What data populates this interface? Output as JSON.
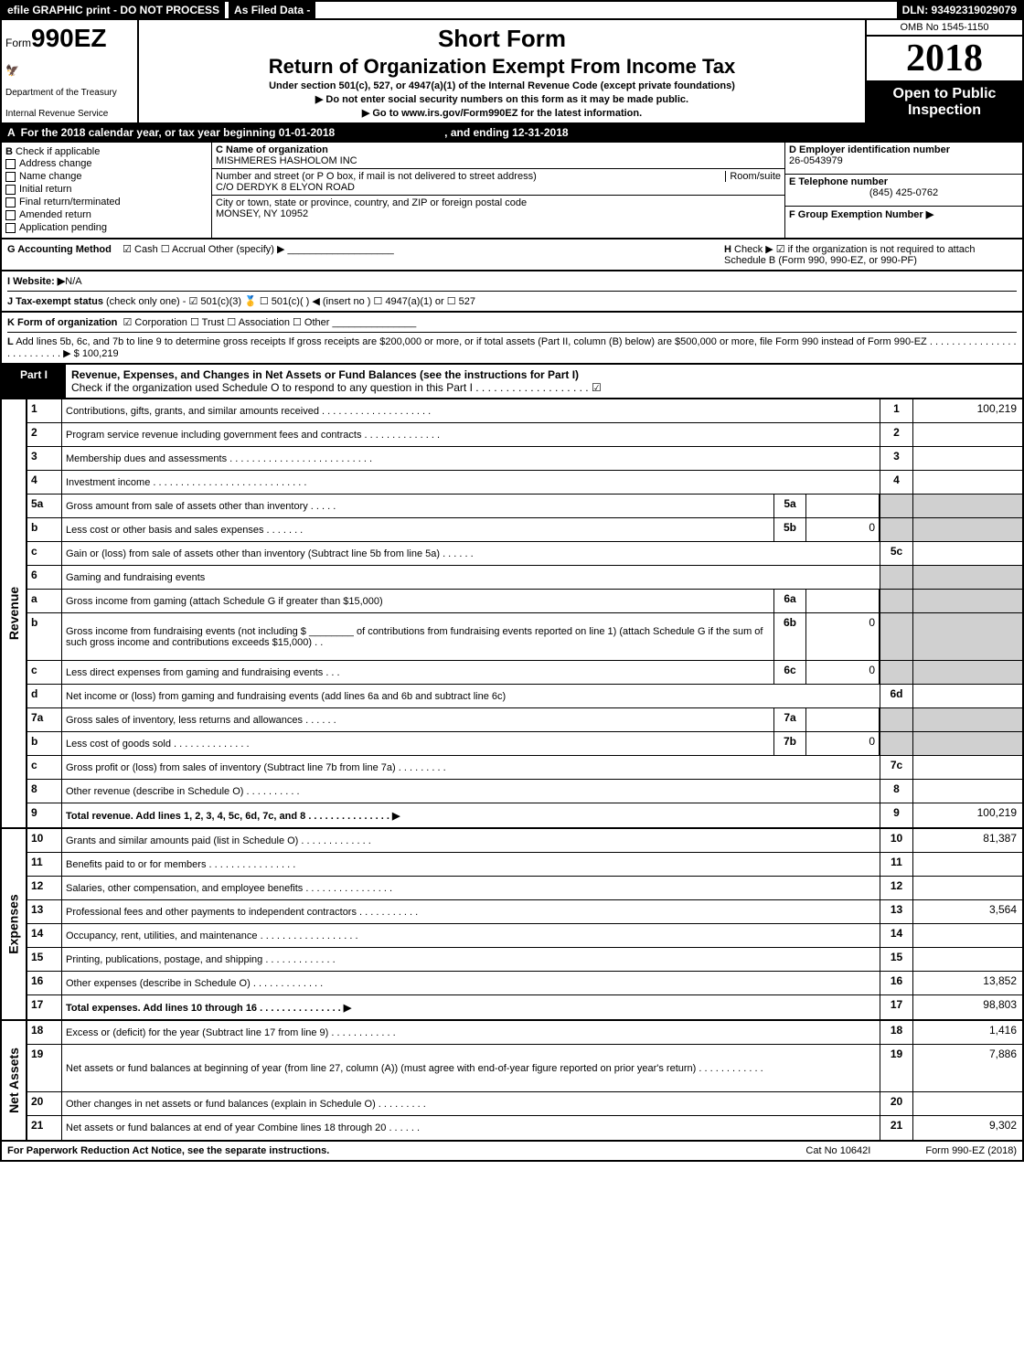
{
  "top": {
    "efile": "efile GRAPHIC print - DO NOT PROCESS",
    "asFiled": "As Filed Data -",
    "dln": "DLN: 93492319029079"
  },
  "header": {
    "formPrefix": "Form",
    "formNumber": "990EZ",
    "dept1": "Department of the Treasury",
    "dept2": "Internal Revenue Service",
    "shortForm": "Short Form",
    "returnTitle": "Return of Organization Exempt From Income Tax",
    "underSection": "Under section 501(c), 527, or 4947(a)(1) of the Internal Revenue Code (except private foundations)",
    "ssnWarn": "▶ Do not enter social security numbers on this form as it may be made public.",
    "goto": "▶ Go to www.irs.gov/Form990EZ for the latest information.",
    "omb": "OMB No 1545-1150",
    "year": "2018",
    "open": "Open to Public Inspection"
  },
  "rowA": {
    "label": "A",
    "text": "For the 2018 calendar year, or tax year beginning 01-01-2018",
    "ending": ", and ending 12-31-2018"
  },
  "colB": {
    "label": "B",
    "check": "Check if applicable",
    "items": [
      "Address change",
      "Name change",
      "Initial return",
      "Final return/terminated",
      "Amended return",
      "Application pending"
    ]
  },
  "colC": {
    "cLabel": "C Name of organization",
    "orgName": "MISHMERES HASHOLOM INC",
    "addrLabel": "Number and street (or P O  box, if mail is not delivered to street address)",
    "roomLabel": "Room/suite",
    "addr": "C/O DERDYK 8 ELYON ROAD",
    "cityLabel": "City or town, state or province, country, and ZIP or foreign postal code",
    "city": "MONSEY, NY  10952"
  },
  "colDEF": {
    "dLabel": "D Employer identification number",
    "ein": "26-0543979",
    "eLabel": "E Telephone number",
    "phone": "(845) 425-0762",
    "fLabel": "F Group Exemption Number   ▶"
  },
  "gh": {
    "gLabel": "G Accounting Method",
    "gOpts": "☑ Cash   ☐ Accrual   Other (specify) ▶",
    "hLabel": "H",
    "hText": "Check ▶  ☑ if the organization is not required to attach Schedule B (Form 990, 990-EZ, or 990-PF)"
  },
  "ij": {
    "iLabel": "I Website: ▶",
    "iVal": "N/A",
    "jLabel": "J Tax-exempt status",
    "jText": "(check only one) - ☑ 501(c)(3) 🥇 ☐ 501(c)( ) ◀ (insert no ) ☐ 4947(a)(1) or ☐ 527"
  },
  "kl": {
    "kLabel": "K Form of organization",
    "kText": "☑ Corporation  ☐ Trust  ☐ Association  ☐ Other",
    "lLabel": "L",
    "lText": "Add lines 5b, 6c, and 7b to line 9 to determine gross receipts  If gross receipts are $200,000 or more, or if total assets (Part II, column (B) below) are $500,000 or more, file Form 990 instead of Form 990-EZ  .  .  .  .  .  .  .  .  .  .  .  .  .  .  .  .  .  .  .  .  .  .  .  .  .  .  ▶ $ 100,219"
  },
  "part1": {
    "label": "Part I",
    "title": "Revenue, Expenses, and Changes in Net Assets or Fund Balances (see the instructions for Part I)",
    "sub": "Check if the organization used Schedule O to respond to any question in this Part I .  .  .  .  .  .  .  .  .  .  .  .  .  .  .  .  .  .  . ☑"
  },
  "sections": {
    "revenue": "Revenue",
    "expenses": "Expenses",
    "netassets": "Net Assets"
  },
  "lines": [
    {
      "n": "1",
      "d": "Contributions, gifts, grants, and similar amounts received  .  .  .  .  .  .  .  .  .  .  .  .  .  .  .  .  .  .  .  .",
      "rn": "1",
      "rv": "100,219",
      "sec": "rev"
    },
    {
      "n": "2",
      "d": "Program service revenue including government fees and contracts  .  .  .  .  .  .  .  .  .  .  .  .  .  .",
      "rn": "2",
      "rv": "",
      "sec": "rev"
    },
    {
      "n": "3",
      "d": "Membership dues and assessments  .  .  .  .  .  .  .  .  .  .  .  .  .  .  .  .  .  .  .  .  .  .  .  .  .  .",
      "rn": "3",
      "rv": "",
      "sec": "rev"
    },
    {
      "n": "4",
      "d": "Investment income  .  .  .  .  .  .  .  .  .  .  .  .  .  .  .  .  .  .  .  .  .  .  .  .  .  .  .  .",
      "rn": "4",
      "rv": "",
      "sec": "rev"
    },
    {
      "n": "5a",
      "d": "Gross amount from sale of assets other than inventory  .  .  .  .  .",
      "box": "5a",
      "bv": "",
      "rn": "",
      "rv": "",
      "rshade": true,
      "sec": "rev"
    },
    {
      "n": "b",
      "d": "Less  cost or other basis and sales expenses  .  .  .  .  .  .  .",
      "box": "5b",
      "bv": "0",
      "rn": "",
      "rv": "",
      "rshade": true,
      "sec": "rev"
    },
    {
      "n": "c",
      "d": "Gain or (loss) from sale of assets other than inventory (Subtract line 5b from line 5a) .  .  .  .  .  .",
      "rn": "5c",
      "rv": "",
      "sec": "rev"
    },
    {
      "n": "6",
      "d": "Gaming and fundraising events",
      "rn": "",
      "rv": "",
      "rshade": true,
      "sec": "rev"
    },
    {
      "n": "a",
      "d": "Gross income from gaming (attach Schedule G if greater than $15,000)",
      "box": "6a",
      "bv": "",
      "rn": "",
      "rv": "",
      "rshade": true,
      "sec": "rev"
    },
    {
      "n": "b",
      "d": "Gross income from fundraising events (not including $ ________ of contributions from fundraising events reported on line 1) (attach Schedule G if the sum of such gross income and contributions exceeds $15,000)    .  .",
      "box": "6b",
      "bv": "0",
      "rn": "",
      "rv": "",
      "rshade": true,
      "sec": "rev",
      "tall": true
    },
    {
      "n": "c",
      "d": "Less  direct expenses from gaming and fundraising events     .  .  .",
      "box": "6c",
      "bv": "0",
      "rn": "",
      "rv": "",
      "rshade": true,
      "sec": "rev"
    },
    {
      "n": "d",
      "d": "Net income or (loss) from gaming and fundraising events (add lines 6a and 6b and subtract line 6c)",
      "rn": "6d",
      "rv": "",
      "sec": "rev"
    },
    {
      "n": "7a",
      "d": "Gross sales of inventory, less returns and allowances  .  .  .  .  .  .",
      "box": "7a",
      "bv": "",
      "rn": "",
      "rv": "",
      "rshade": true,
      "sec": "rev"
    },
    {
      "n": "b",
      "d": "Less  cost of goods sold          .  .  .  .  .  .  .  .  .  .  .  .  .  .",
      "box": "7b",
      "bv": "0",
      "rn": "",
      "rv": "",
      "rshade": true,
      "sec": "rev"
    },
    {
      "n": "c",
      "d": "Gross profit or (loss) from sales of inventory (Subtract line 7b from line 7a) .  .  .  .  .  .  .  .  .",
      "rn": "7c",
      "rv": "",
      "sec": "rev"
    },
    {
      "n": "8",
      "d": "Other revenue (describe in Schedule O)                  .  .  .  .  .  .  .  .  .  .",
      "rn": "8",
      "rv": "",
      "sec": "rev"
    },
    {
      "n": "9",
      "d": "Total revenue. Add lines 1, 2, 3, 4, 5c, 6d, 7c, and 8  .  .  .  .  .  .  .  .  .  .  .  .  .  .  .   ▶",
      "rn": "9",
      "rv": "100,219",
      "bold": true,
      "sec": "rev"
    },
    {
      "n": "10",
      "d": "Grants and similar amounts paid (list in Schedule O)          .  .  .  .  .  .  .  .  .  .  .  .  .",
      "rn": "10",
      "rv": "81,387",
      "sec": "exp"
    },
    {
      "n": "11",
      "d": "Benefits paid to or for members               .  .  .  .  .  .  .  .  .  .  .  .  .  .  .  .",
      "rn": "11",
      "rv": "",
      "sec": "exp"
    },
    {
      "n": "12",
      "d": "Salaries, other compensation, and employee benefits  .  .  .  .  .  .  .  .  .  .  .  .  .  .  .  .",
      "rn": "12",
      "rv": "",
      "sec": "exp"
    },
    {
      "n": "13",
      "d": "Professional fees and other payments to independent contractors  .  .  .  .  .  .  .  .  .  .  .",
      "rn": "13",
      "rv": "3,564",
      "sec": "exp"
    },
    {
      "n": "14",
      "d": "Occupancy, rent, utilities, and maintenance  .  .  .  .  .  .  .  .  .  .  .  .  .  .  .  .  .  .",
      "rn": "14",
      "rv": "",
      "sec": "exp"
    },
    {
      "n": "15",
      "d": "Printing, publications, postage, and shipping             .  .  .  .  .  .  .  .  .  .  .  .  .",
      "rn": "15",
      "rv": "",
      "sec": "exp"
    },
    {
      "n": "16",
      "d": "Other expenses (describe in Schedule O)               .  .  .  .  .  .  .  .  .  .  .  .  .",
      "rn": "16",
      "rv": "13,852",
      "sec": "exp"
    },
    {
      "n": "17",
      "d": "Total expenses. Add lines 10 through 16        .  .  .  .  .  .  .  .  .  .  .  .  .  .  .   ▶",
      "rn": "17",
      "rv": "98,803",
      "bold": true,
      "sec": "exp"
    },
    {
      "n": "18",
      "d": "Excess or (deficit) for the year (Subtract line 17 from line 9)     .  .  .  .  .  .  .  .  .  .  .  .",
      "rn": "18",
      "rv": "1,416",
      "sec": "net"
    },
    {
      "n": "19",
      "d": "Net assets or fund balances at beginning of year (from line 27, column (A)) (must agree with end-of-year figure reported on prior year's return)            .  .  .  .  .  .  .  .  .  .  .  .",
      "rn": "19",
      "rv": "7,886",
      "sec": "net",
      "tall": true
    },
    {
      "n": "20",
      "d": "Other changes in net assets or fund balances (explain in Schedule O)    .  .  .  .  .  .  .  .  .",
      "rn": "20",
      "rv": "",
      "sec": "net"
    },
    {
      "n": "21",
      "d": "Net assets or fund balances at end of year  Combine lines 18 through 20        .  .  .  .  .  .",
      "rn": "21",
      "rv": "9,302",
      "sec": "net"
    }
  ],
  "footer": {
    "left": "For Paperwork Reduction Act Notice, see the separate instructions.",
    "mid": "Cat  No  10642I",
    "right": "Form 990-EZ (2018)"
  },
  "colors": {
    "black": "#000000",
    "white": "#ffffff",
    "shade": "#d0d0d0"
  }
}
